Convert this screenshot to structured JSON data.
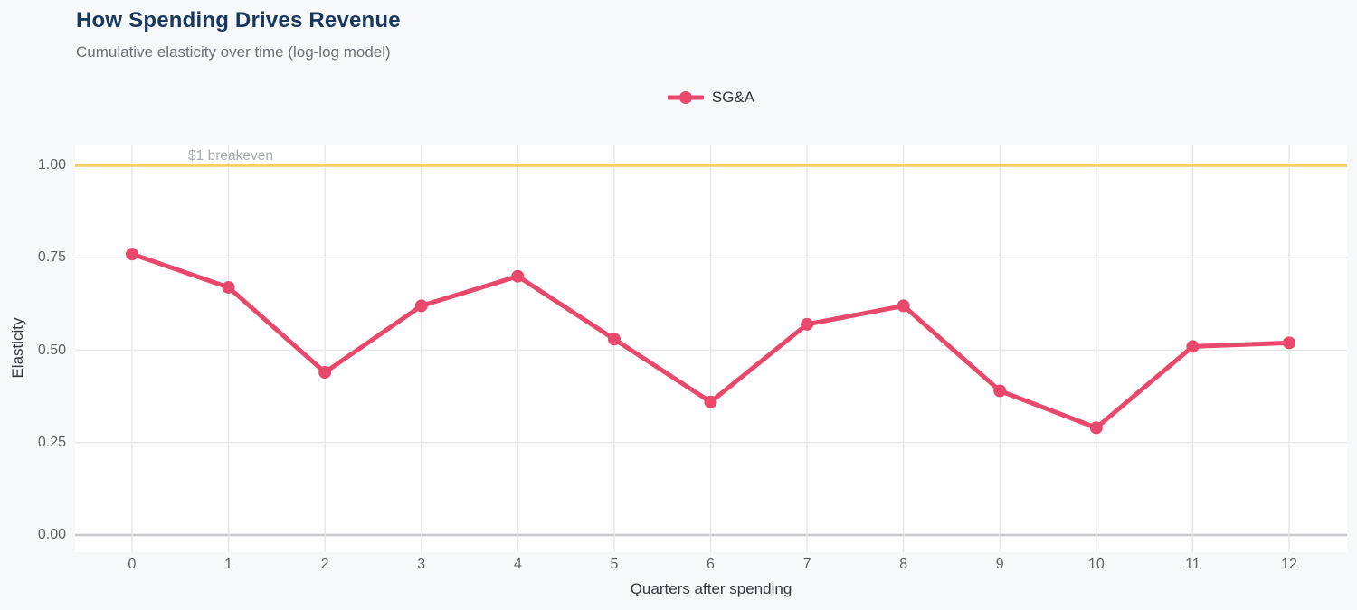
{
  "chart_data": {
    "type": "line",
    "title": "How Spending Drives Revenue",
    "subtitle": "Cumulative elasticity over time (log-log model)",
    "xlabel": "Quarters after spending",
    "ylabel": "Elasticity",
    "x": [
      0,
      1,
      2,
      3,
      4,
      5,
      6,
      7,
      8,
      9,
      10,
      11,
      12
    ],
    "yticks": [
      0,
      0.25,
      0.5,
      0.75,
      1
    ],
    "ytick_labels": [
      "0.00",
      "0.25",
      "0.50",
      "0.75",
      "1.00"
    ],
    "ylim": [
      -0.05,
      1.06
    ],
    "grid": true,
    "legend_position": "top-center",
    "series": [
      {
        "name": "SG&A",
        "color": "#e8486b",
        "values": [
          0.76,
          0.67,
          0.44,
          0.62,
          0.7,
          0.53,
          0.36,
          0.57,
          0.62,
          0.39,
          0.29,
          0.51,
          0.52
        ]
      }
    ],
    "reference_line": {
      "value": 1.0,
      "label": "$1 breakeven",
      "color": "#f4cf63"
    }
  },
  "theme": {
    "page_bg": "#f7f8fa",
    "plot_bg": "#ffffff",
    "grid_color": "#e7e8ea",
    "axis_line_color": "#c6c9cd",
    "title_color": "#17375e",
    "subtitle_color": "#6b7077",
    "tick_color": "#5d6166",
    "axis_title_color": "#32363e",
    "ref_label_color": "#a7aaaf"
  }
}
